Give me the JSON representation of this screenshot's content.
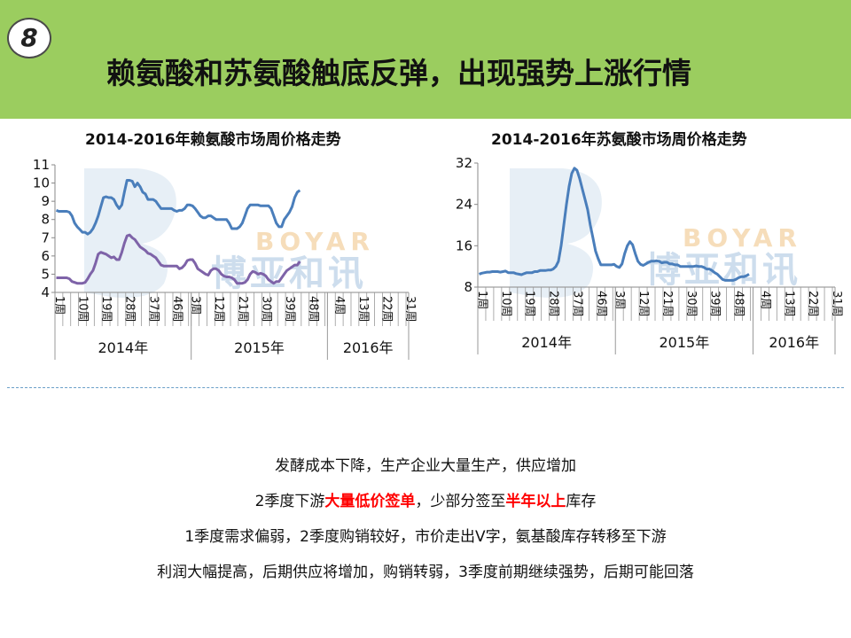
{
  "header": {
    "badge": "8",
    "title": "赖氨酸和苏氨酸触底反弹，出现强势上涨行情"
  },
  "watermark": {
    "text_en": "BOYAR",
    "text_cn": "博亚和讯"
  },
  "colors": {
    "header_bg": "#9bcd5f",
    "series_blue": "#4a7ebb",
    "series_purple": "#7e63a8",
    "highlight_red": "#ff0000"
  },
  "chart_data": [
    {
      "type": "line",
      "title": "2014-2016年赖氨酸市场周价格走势",
      "ylim": [
        4,
        11
      ],
      "yticks": [
        "4",
        "5",
        "6",
        "7",
        "8",
        "9",
        "10",
        "11"
      ],
      "xtick_labels": [
        "1周",
        "10周",
        "19周",
        "28周",
        "37周",
        "46周",
        "3周",
        "12周",
        "21周",
        "30周",
        "39周",
        "48周",
        "4周",
        "13周",
        "22周",
        "31周"
      ],
      "years": [
        "2014年",
        "2015年",
        "2016年"
      ],
      "series": [
        {
          "color": "#4a7ebb",
          "values": [
            8.5,
            8.45,
            8.45,
            8.45,
            8.45,
            8.4,
            8.2,
            7.8,
            7.6,
            7.45,
            7.3,
            7.3,
            7.2,
            7.3,
            7.5,
            7.8,
            8.2,
            8.7,
            9.2,
            9.25,
            9.2,
            9.2,
            9.1,
            8.8,
            8.6,
            8.8,
            9.5,
            10.15,
            10.15,
            10.1,
            9.8,
            10.0,
            9.8,
            9.5,
            9.4,
            9.1,
            9.1,
            9.1,
            9.0,
            8.8,
            8.6,
            8.6,
            8.6,
            8.6,
            8.6,
            8.5,
            8.45,
            8.5,
            8.5,
            8.6,
            8.8,
            8.8,
            8.75,
            8.6,
            8.4,
            8.2,
            8.1,
            8.1,
            8.2,
            8.2,
            8.1,
            8.0,
            8.0,
            8.0,
            8.0,
            8.0,
            7.8,
            7.5,
            7.5,
            7.5,
            7.6,
            7.8,
            8.2,
            8.6,
            8.8,
            8.8,
            8.8,
            8.8,
            8.75,
            8.75,
            8.75,
            8.75,
            8.6,
            8.2,
            7.8,
            7.6,
            7.6,
            8.0,
            8.2,
            8.4,
            8.7,
            9.2,
            9.5,
            9.6
          ]
        },
        {
          "color": "#7e63a8",
          "values": [
            4.8,
            4.8,
            4.8,
            4.8,
            4.8,
            4.75,
            4.6,
            4.55,
            4.5,
            4.5,
            4.5,
            4.55,
            4.75,
            5.0,
            5.2,
            5.6,
            6.1,
            6.2,
            6.15,
            6.1,
            6.0,
            5.9,
            5.95,
            5.8,
            5.8,
            6.2,
            6.7,
            7.1,
            7.15,
            7.0,
            6.9,
            6.7,
            6.5,
            6.4,
            6.3,
            6.15,
            6.1,
            6.0,
            5.9,
            5.7,
            5.5,
            5.45,
            5.45,
            5.45,
            5.45,
            5.45,
            5.45,
            5.3,
            5.35,
            5.5,
            5.75,
            5.8,
            5.8,
            5.6,
            5.3,
            5.2,
            5.1,
            5.0,
            4.95,
            5.2,
            5.3,
            5.3,
            5.2,
            5.0,
            4.9,
            4.85,
            4.85,
            4.8,
            4.7,
            4.5,
            4.5,
            4.5,
            4.55,
            4.7,
            5.0,
            5.15,
            5.1,
            5.0,
            5.05,
            5.0,
            4.9,
            4.7,
            4.6,
            4.5,
            4.6,
            4.6,
            4.8,
            5.0,
            5.2,
            5.3,
            5.4,
            5.5,
            5.5,
            5.7
          ]
        }
      ]
    },
    {
      "type": "line",
      "title": "2014-2016年苏氨酸市场周价格走势",
      "ylim": [
        8,
        32
      ],
      "yticks": [
        "8",
        "16",
        "24",
        "32"
      ],
      "xtick_labels": [
        "1周",
        "10周",
        "19周",
        "28周",
        "37周",
        "46周",
        "3周",
        "12周",
        "21周",
        "30周",
        "39周",
        "48周",
        "4周",
        "13周",
        "22周",
        "31周"
      ],
      "years": [
        "2014年",
        "2015年",
        "2016年"
      ],
      "series": [
        {
          "color": "#4a7ebb",
          "values": [
            10.5,
            10.7,
            10.8,
            10.9,
            10.9,
            11.0,
            11.0,
            11.0,
            10.9,
            11.0,
            11.1,
            10.8,
            10.8,
            10.8,
            10.6,
            10.5,
            10.4,
            10.6,
            10.8,
            10.8,
            10.8,
            11.0,
            11.0,
            11.2,
            11.2,
            11.2,
            11.3,
            11.3,
            11.5,
            12.0,
            13.0,
            16.0,
            20.0,
            24.0,
            27.5,
            30.0,
            31.0,
            30.6,
            29.0,
            27.0,
            25.0,
            23.0,
            20.0,
            17.5,
            15.0,
            13.5,
            12.3,
            12.3,
            12.3,
            12.3,
            12.3,
            12.4,
            12.0,
            11.8,
            12.5,
            14.5,
            16.0,
            16.8,
            16.2,
            14.5,
            13.0,
            12.4,
            12.2,
            12.5,
            12.8,
            13.0,
            13.0,
            13.1,
            13.0,
            12.7,
            12.8,
            12.8,
            12.5,
            12.5,
            12.3,
            12.3,
            12.0,
            12.0,
            12.0,
            12.0,
            12.0,
            12.0,
            12.1,
            12.0,
            12.0,
            11.8,
            11.5,
            11.5,
            11.2,
            10.8,
            10.5,
            10.0,
            9.5,
            9.3,
            9.3,
            9.3,
            9.3,
            9.5,
            9.8,
            10.0,
            10.0,
            10.2,
            10.5
          ]
        }
      ]
    }
  ],
  "notes": {
    "line1": "发酵成本下降，生产企业大量生产，供应增加",
    "line2_a": "2季度下游",
    "line2_hl1": "大量低价签单",
    "line2_b": "，少部分签至",
    "line2_hl2": "半年以上",
    "line2_c": "库存",
    "line3": "1季度需求偏弱，2季度购销较好，市价走出V字，氨基酸库存转移至下游",
    "line4": "利润大幅提高，后期供应将增加，购销转弱，3季度前期继续强势，后期可能回落"
  }
}
